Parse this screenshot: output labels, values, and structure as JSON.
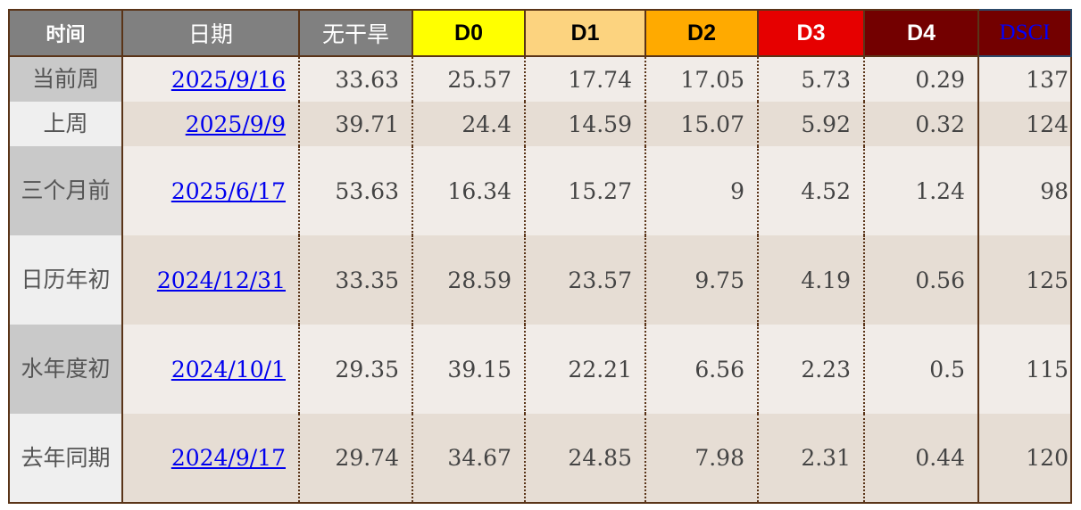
{
  "headers": [
    "时间",
    "日期",
    "无干旱",
    "D0",
    "D1",
    "D2",
    "D3",
    "D4",
    "DSCI"
  ],
  "header_colors": {
    "D0": "#ffff00",
    "D1": "#fcd37f",
    "D2": "#ffaa00",
    "D3": "#e60000",
    "D4": "#730000",
    "DSCI": "#730000"
  },
  "rows": [
    {
      "period": "当前周",
      "date": "2025/9/16",
      "none": "33.63",
      "d0": "25.57",
      "d1": "17.74",
      "d2": "17.05",
      "d3": "5.73",
      "d4": "0.29",
      "dsci": "137"
    },
    {
      "period": "上周",
      "date": "2025/9/9",
      "none": "39.71",
      "d0": "24.4",
      "d1": "14.59",
      "d2": "15.07",
      "d3": "5.92",
      "d4": "0.32",
      "dsci": "124"
    },
    {
      "period": "三个月前",
      "date": "2025/6/17",
      "none": "53.63",
      "d0": "16.34",
      "d1": "15.27",
      "d2": "9",
      "d3": "4.52",
      "d4": "1.24",
      "dsci": "98"
    },
    {
      "period": "日历年初",
      "date": "2024/12/31",
      "none": "33.35",
      "d0": "28.59",
      "d1": "23.57",
      "d2": "9.75",
      "d3": "4.19",
      "d4": "0.56",
      "dsci": "125"
    },
    {
      "period": "水年度初",
      "date": "2024/10/1",
      "none": "29.35",
      "d0": "39.15",
      "d1": "22.21",
      "d2": "6.56",
      "d3": "2.23",
      "d4": "0.5",
      "dsci": "115"
    },
    {
      "period": "去年同期",
      "date": "2024/9/17",
      "none": "29.74",
      "d0": "34.67",
      "d1": "24.85",
      "d2": "7.98",
      "d3": "2.31",
      "d4": "0.44",
      "dsci": "120"
    }
  ]
}
